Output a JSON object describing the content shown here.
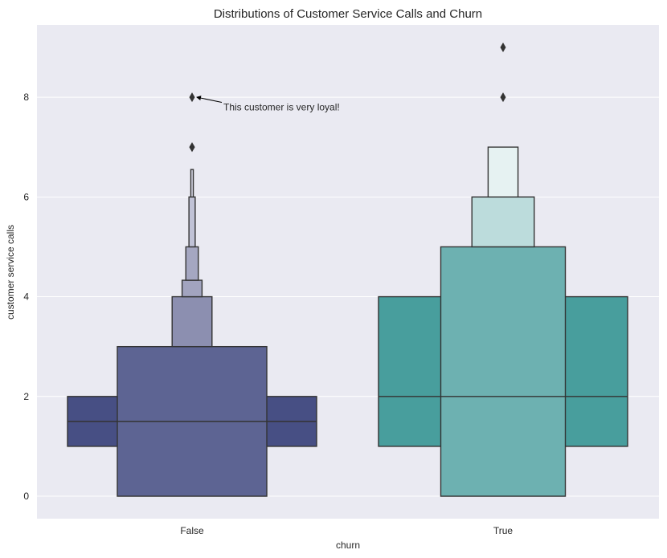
{
  "chart_data": {
    "type": "boxen",
    "title": "Distributions of Customer Service Calls and Churn",
    "xlabel": "churn",
    "ylabel": "customer service calls",
    "categories": [
      "False",
      "True"
    ],
    "ylim": [
      -0.45,
      9.45
    ],
    "yticks": [
      0,
      2,
      4,
      6,
      8
    ],
    "grid": true,
    "colors": {
      "background": "#eaeaf2",
      "grid": "#ffffff",
      "edge": "#333333"
    },
    "series": [
      {
        "category": "False",
        "median": 1.5,
        "boxes": [
          {
            "low": 1.0,
            "high": 2.0,
            "width": 1.0,
            "color": "#474f84"
          },
          {
            "low": 0.0,
            "high": 3.0,
            "width": 0.6,
            "color": "#5d6493"
          },
          {
            "low": 3.0,
            "high": 4.0,
            "width": 0.16,
            "color": "#8c8fb0"
          },
          {
            "low": 4.0,
            "high": 4.33,
            "width": 0.08,
            "color": "#a2a4bf"
          },
          {
            "low": 4.33,
            "high": 5.0,
            "width": 0.05,
            "color": "#a5a7c1"
          },
          {
            "low": 5.0,
            "high": 6.0,
            "width": 0.025,
            "color": "#c0c2d6"
          },
          {
            "low": 6.0,
            "high": 6.55,
            "width": 0.01,
            "color": "#d3d4e2"
          }
        ],
        "outliers": [
          7,
          7,
          8
        ]
      },
      {
        "category": "True",
        "median": 2.0,
        "boxes": [
          {
            "low": 1.0,
            "high": 4.0,
            "width": 1.0,
            "color": "#489e9d"
          },
          {
            "low": 0.0,
            "high": 5.0,
            "width": 0.5,
            "color": "#6db1b1"
          },
          {
            "low": 5.0,
            "high": 6.0,
            "width": 0.25,
            "color": "#bcdcdc"
          },
          {
            "low": 6.0,
            "high": 7.0,
            "width": 0.12,
            "color": "#e6f2f2"
          }
        ],
        "outliers": [
          8,
          9
        ]
      }
    ],
    "annotation": {
      "text": "This customer is very loyal!",
      "point": {
        "category": "False",
        "value": 8
      },
      "text_value": 7.8
    }
  }
}
